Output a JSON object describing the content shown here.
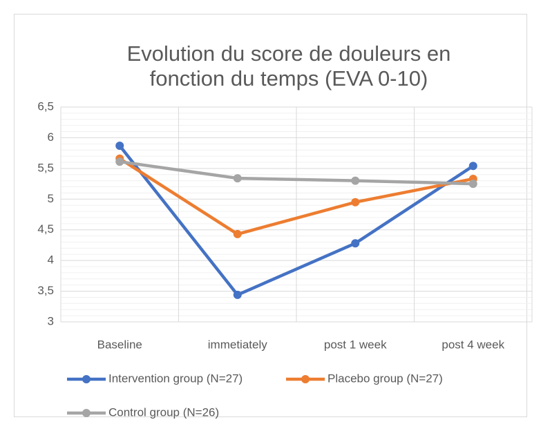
{
  "chart_data": {
    "type": "line",
    "title": [
      "Evolution du score de douleurs en",
      "fonction du temps (EVA 0-10)"
    ],
    "categories": [
      "Baseline",
      "immetiately",
      "post 1 week",
      "post 4 week"
    ],
    "series": [
      {
        "name": "Intervention group (N=27)",
        "color": "#4472c4",
        "values": [
          5.87,
          3.44,
          4.28,
          5.54
        ]
      },
      {
        "name": "Placebo group (N=27)",
        "color": "#ed7d31",
        "values": [
          5.66,
          4.43,
          4.95,
          5.33
        ]
      },
      {
        "name": "Control group (N=26)",
        "color": "#a5a5a5",
        "values": [
          5.61,
          5.34,
          5.3,
          5.25
        ]
      }
    ],
    "ylim": [
      3,
      6.5
    ],
    "yticks": [
      3,
      {
        "value": 3.5,
        "label": "3,5"
      },
      4,
      {
        "value": 4.5,
        "label": "4,5"
      },
      5,
      {
        "value": 5.5,
        "label": "5,5"
      },
      6,
      {
        "value": 6.5,
        "label": "6,5"
      }
    ],
    "grid": true,
    "minor_grid": true,
    "legend": "bottom"
  }
}
